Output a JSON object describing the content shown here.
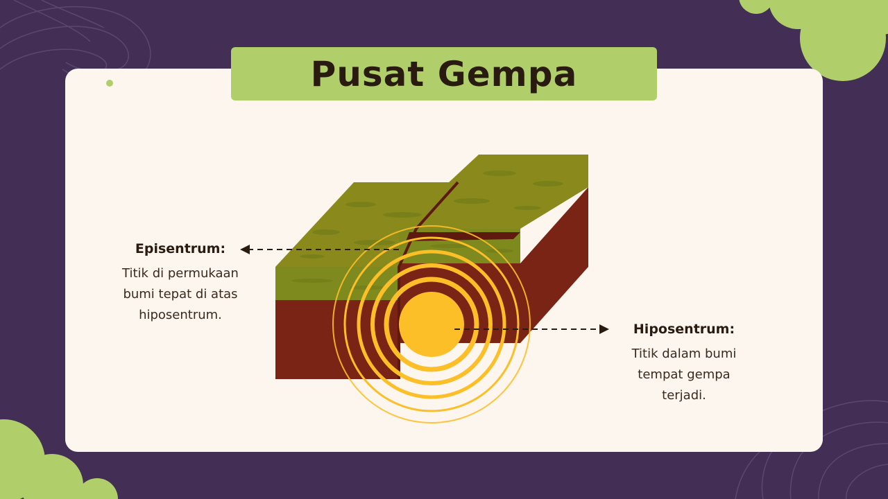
{
  "slide": {
    "title": "Pusat Gempa"
  },
  "labels": {
    "epicenter": {
      "title": "Episentrum:",
      "description": [
        "Titik di permukaan",
        "bumi tepat di atas",
        "hiposentrum."
      ]
    },
    "hypocenter": {
      "title": "Hiposentrum:",
      "description": [
        "Titik dalam bumi",
        "tempat gempa",
        "terjadi."
      ]
    }
  },
  "colors": {
    "background": "#432F55",
    "card": "#FCF6EF",
    "accent_green": "#B0CF6B",
    "ground_top": "#8A8A1C",
    "ground_mid": "#7E8A1E",
    "rock": "#7A2415",
    "quake_yellow": "#FDBF28",
    "text_dark": "#2A1B10"
  },
  "icons": {
    "left_arrow": "arrow-left-icon",
    "right_arrow": "arrow-right-icon"
  }
}
